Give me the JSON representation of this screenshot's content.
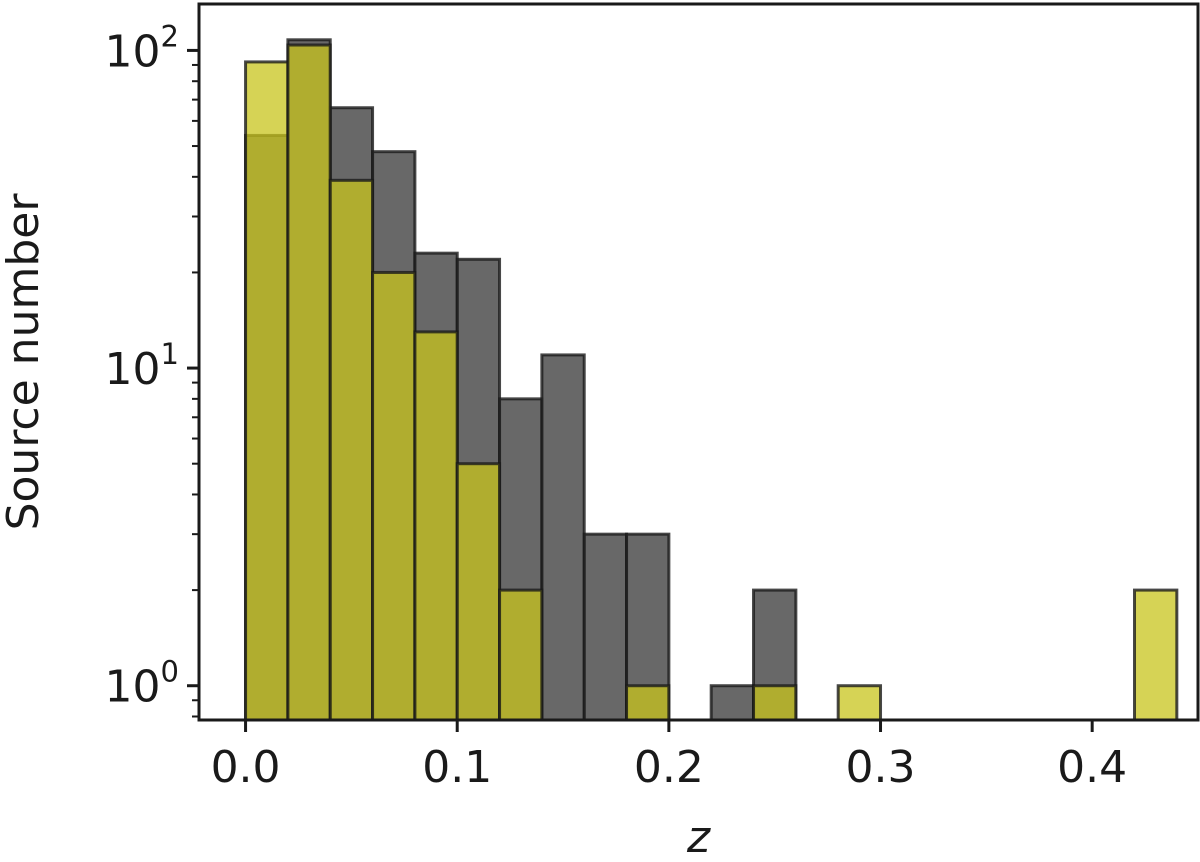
{
  "chart_data": {
    "type": "bar",
    "title": "",
    "xlabel": "z",
    "ylabel": "Source number",
    "yscale": "log",
    "xlim": [
      -0.022,
      0.45
    ],
    "ylim": [
      0.78,
      140
    ],
    "grid": false,
    "legend": "none",
    "bin_width": 0.02,
    "x_ticks": [
      {
        "value": 0.0,
        "label": "0.0"
      },
      {
        "value": 0.1,
        "label": "0.1"
      },
      {
        "value": 0.2,
        "label": "0.2"
      },
      {
        "value": 0.3,
        "label": "0.3"
      },
      {
        "value": 0.4,
        "label": "0.4"
      }
    ],
    "y_ticks": [
      {
        "value": 1,
        "base": "10",
        "exp": "0"
      },
      {
        "value": 10,
        "base": "10",
        "exp": "1"
      },
      {
        "value": 100,
        "base": "10",
        "exp": "2"
      }
    ],
    "series": [
      {
        "color": "#4d4d4d",
        "opacity": 0.85,
        "bins": [
          {
            "x0": 0.0,
            "x1": 0.02,
            "value": 54
          },
          {
            "x0": 0.02,
            "x1": 0.04,
            "value": 108
          },
          {
            "x0": 0.04,
            "x1": 0.06,
            "value": 66
          },
          {
            "x0": 0.06,
            "x1": 0.08,
            "value": 48
          },
          {
            "x0": 0.08,
            "x1": 0.1,
            "value": 23
          },
          {
            "x0": 0.1,
            "x1": 0.12,
            "value": 22
          },
          {
            "x0": 0.12,
            "x1": 0.14,
            "value": 8
          },
          {
            "x0": 0.14,
            "x1": 0.16,
            "value": 11
          },
          {
            "x0": 0.16,
            "x1": 0.18,
            "value": 3
          },
          {
            "x0": 0.18,
            "x1": 0.2,
            "value": 3
          },
          {
            "x0": 0.22,
            "x1": 0.24,
            "value": 1
          },
          {
            "x0": 0.24,
            "x1": 0.26,
            "value": 2
          }
        ]
      },
      {
        "color": "#c8c41c",
        "opacity": 0.75,
        "bins": [
          {
            "x0": 0.0,
            "x1": 0.02,
            "value": 92
          },
          {
            "x0": 0.02,
            "x1": 0.04,
            "value": 104
          },
          {
            "x0": 0.04,
            "x1": 0.06,
            "value": 39
          },
          {
            "x0": 0.06,
            "x1": 0.08,
            "value": 20
          },
          {
            "x0": 0.08,
            "x1": 0.1,
            "value": 13
          },
          {
            "x0": 0.1,
            "x1": 0.12,
            "value": 5
          },
          {
            "x0": 0.12,
            "x1": 0.14,
            "value": 2
          },
          {
            "x0": 0.18,
            "x1": 0.2,
            "value": 1
          },
          {
            "x0": 0.24,
            "x1": 0.26,
            "value": 1
          },
          {
            "x0": 0.28,
            "x1": 0.3,
            "value": 1
          },
          {
            "x0": 0.42,
            "x1": 0.44,
            "value": 2
          }
        ]
      }
    ]
  }
}
